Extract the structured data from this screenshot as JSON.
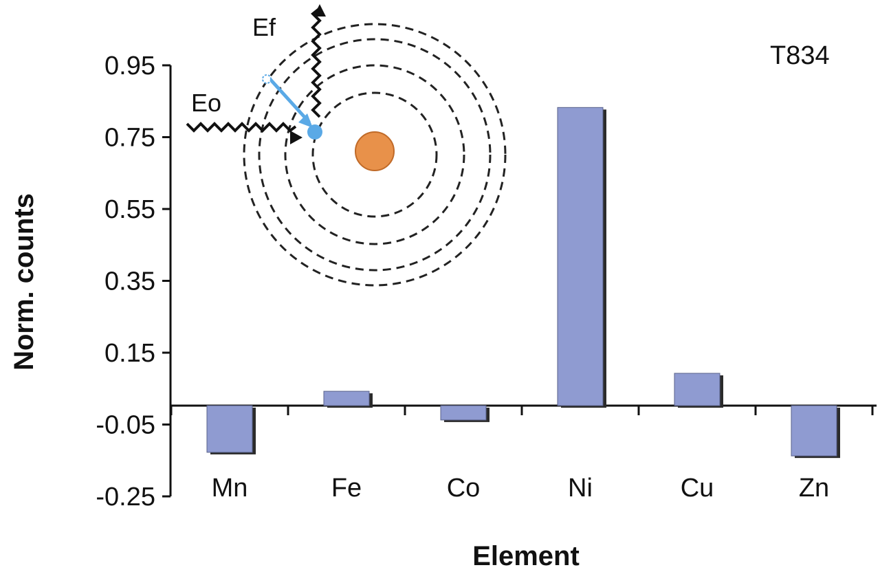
{
  "chart_data": {
    "type": "bar",
    "categories": [
      "Mn",
      "Fe",
      "Co",
      "Ni",
      "Cu",
      "Zn"
    ],
    "values": [
      -0.13,
      0.04,
      -0.04,
      0.83,
      0.09,
      -0.14
    ],
    "xlabel": "Element",
    "ylabel": "Norm. counts",
    "yticks": [
      0.95,
      0.75,
      0.55,
      0.35,
      0.15,
      -0.05,
      -0.25
    ],
    "ylim": [
      -0.25,
      0.95
    ],
    "annotation": "T834",
    "bar_color": "#8f9bd1",
    "grid": false
  },
  "inset": {
    "label_incident": "Eo",
    "label_emitted": "Ef",
    "nucleus_color": "#e8914a",
    "electron_color": "#5aa9e6"
  }
}
